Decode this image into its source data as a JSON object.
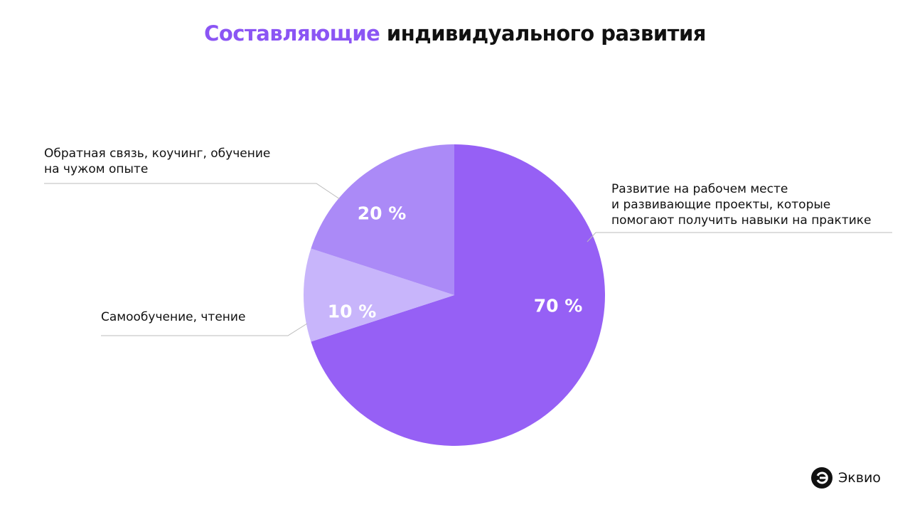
{
  "chart_data": {
    "type": "pie",
    "title": [
      "Составляющие",
      "индивидуального развития"
    ],
    "title_colors": [
      "#8b55f4",
      "#111111"
    ],
    "categories": [
      "Развитие на рабочем месте\nи развивающие проекты, которые\nпомогают получить навыки на практике",
      "Самообучение, чтение",
      "Обратная связь, коучинг, обучение\nна чужом опыте"
    ],
    "values": [
      70,
      10,
      20
    ],
    "value_labels": [
      "70 %",
      "10 %",
      "20 %"
    ],
    "colors": [
      "#9660f5",
      "#c8b5fb",
      "#ab8af7"
    ]
  },
  "brand": "Эквио"
}
